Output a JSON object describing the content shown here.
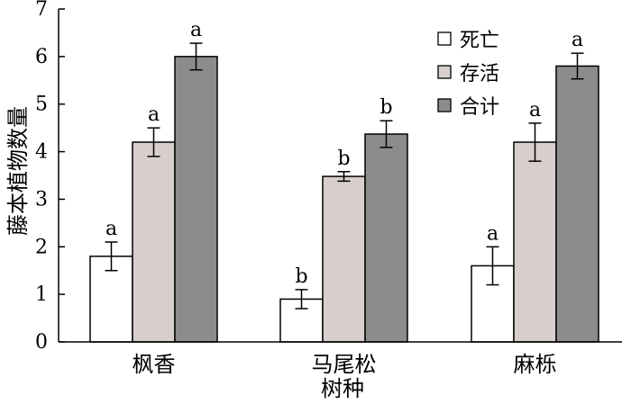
{
  "chart_data": {
    "type": "bar",
    "ylabel": "藤本植物数量",
    "xlabel": "树种",
    "categories": [
      "枫香",
      "马尾松",
      "麻栎"
    ],
    "ylim": [
      0,
      7
    ],
    "yticks": [
      0,
      1,
      2,
      3,
      4,
      5,
      6,
      7
    ],
    "series": [
      {
        "name": "死亡",
        "color": "#ffffff",
        "values": [
          1.8,
          0.9,
          1.6
        ],
        "errors": [
          0.3,
          0.2,
          0.4
        ],
        "sig": [
          "a",
          "b",
          "a"
        ]
      },
      {
        "name": "存活",
        "color": "#d8cfcc",
        "values": [
          4.2,
          3.48,
          4.2
        ],
        "errors": [
          0.3,
          0.1,
          0.4
        ],
        "sig": [
          "a",
          "b",
          "a"
        ]
      },
      {
        "name": "合计",
        "color": "#8c8c8c",
        "values": [
          6.0,
          4.37,
          5.8
        ],
        "errors": [
          0.28,
          0.28,
          0.27
        ],
        "sig": [
          "a",
          "b",
          "a"
        ]
      }
    ],
    "legend_position": "top-right",
    "grid": false
  }
}
